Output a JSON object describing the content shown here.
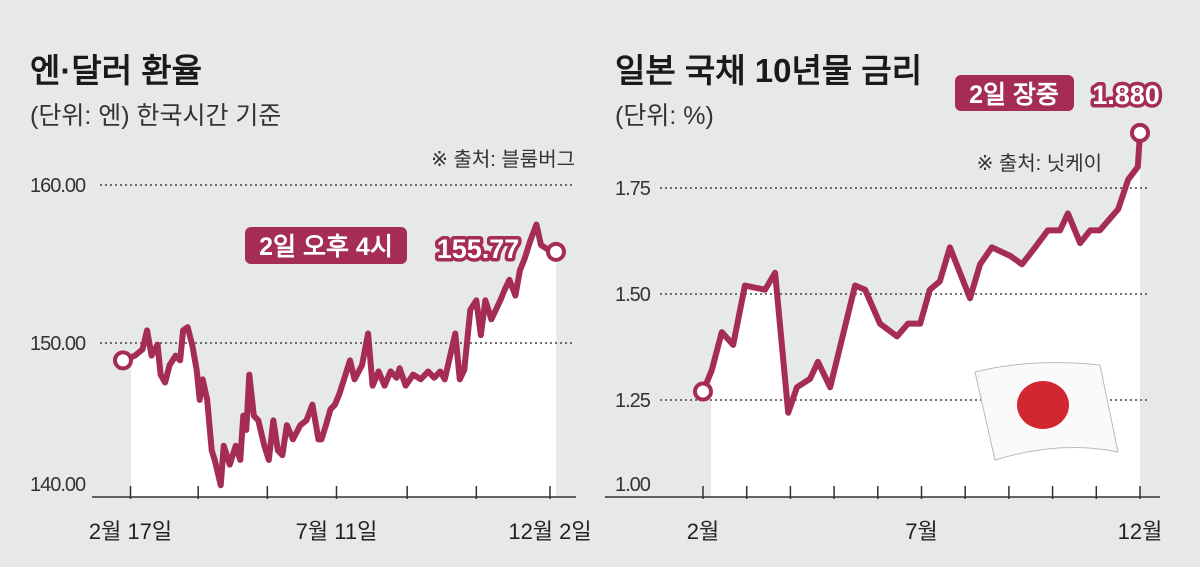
{
  "colors": {
    "line": "#a52d55",
    "background": "#e7e8ea",
    "fill": "#ffffff",
    "flag_red": "#d22630"
  },
  "chart_data": [
    {
      "type": "line",
      "title": "엔·달러 환율",
      "subtitle": "(단위: 엔) 한국시간 기준",
      "source": "※ 출처: 블룸버그",
      "xlabel": "",
      "ylabel": "엔",
      "xlim": [
        0,
        288
      ],
      "ylim": [
        140,
        160
      ],
      "yticks": [
        {
          "value": 160,
          "label": "160.00"
        },
        {
          "value": 150,
          "label": "150.00"
        },
        {
          "value": 140,
          "label": "140.00"
        }
      ],
      "xticks": [
        5,
        50,
        96,
        142,
        189,
        235,
        284
      ],
      "xtick_labels": [
        {
          "day": 5,
          "label": "2월 17일"
        },
        {
          "day": 142,
          "label": "7월 11일"
        },
        {
          "day": 284,
          "label": "12월 2일"
        }
      ],
      "grid": true,
      "annotation": {
        "label": "2일 오후 4시",
        "value": "155.77"
      },
      "x": [
        0,
        8,
        13,
        16,
        19,
        23,
        25,
        28,
        31,
        35,
        38,
        40,
        43,
        46,
        49,
        51,
        53,
        56,
        59,
        61,
        65,
        67,
        71,
        75,
        78,
        80,
        82,
        84,
        87,
        90,
        94,
        97,
        100,
        103,
        106,
        109,
        113,
        118,
        122,
        126,
        130,
        132,
        135,
        138,
        141,
        144,
        148,
        151,
        154,
        159,
        163,
        166,
        170,
        174,
        178,
        182,
        184,
        188,
        193,
        198,
        203,
        207,
        211,
        214,
        221,
        224,
        227,
        231,
        235,
        238,
        241,
        245,
        251,
        254,
        257,
        261,
        264,
        267,
        271,
        275,
        278,
        283,
        288
      ],
      "y": [
        148.9,
        149.2,
        149.6,
        150.8,
        149.2,
        149.9,
        148.0,
        147.5,
        148.6,
        149.2,
        148.9,
        150.8,
        151.0,
        149.9,
        148.3,
        146.4,
        147.7,
        146.4,
        143.2,
        142.6,
        141.0,
        143.5,
        142.3,
        143.5,
        142.6,
        145.4,
        144.5,
        148.0,
        145.4,
        145.1,
        143.5,
        142.6,
        145.1,
        143.2,
        142.9,
        144.8,
        143.9,
        144.8,
        145.1,
        146.1,
        143.9,
        143.9,
        144.8,
        145.8,
        146.1,
        146.8,
        148.0,
        148.9,
        147.7,
        148.6,
        150.6,
        147.3,
        148.2,
        147.3,
        148.2,
        147.8,
        148.4,
        147.3,
        148.0,
        147.7,
        148.2,
        147.8,
        148.2,
        147.7,
        150.6,
        147.7,
        148.3,
        152.1,
        152.7,
        150.5,
        152.7,
        151.5,
        152.7,
        153.4,
        154.0,
        153.0,
        154.6,
        155.3,
        156.5,
        157.5,
        156.2,
        155.9,
        155.77
      ]
    },
    {
      "type": "line",
      "title": "일본 국채 10년물 금리",
      "subtitle": "(단위: %)",
      "source": "※ 출처: 닛케이",
      "xlabel": "",
      "ylabel": "%",
      "xlim": [
        0,
        10
      ],
      "ylim": [
        1.0,
        1.75
      ],
      "yticks": [
        {
          "value": 1.75,
          "label": "1.75"
        },
        {
          "value": 1.5,
          "label": "1.50"
        },
        {
          "value": 1.25,
          "label": "1.25"
        },
        {
          "value": 1.0,
          "label": "1.00"
        }
      ],
      "xticks": [
        0,
        1,
        2,
        3,
        4,
        5,
        6,
        7,
        8,
        9,
        10
      ],
      "xtick_labels": [
        {
          "month": 0,
          "label": "2월"
        },
        {
          "month": 5,
          "label": "7월"
        },
        {
          "month": 10,
          "label": "12월"
        }
      ],
      "grid": true,
      "annotation": {
        "label": "2일 장중",
        "value": "1.880"
      },
      "x": [
        0,
        0.2,
        0.43,
        0.69,
        0.96,
        1.42,
        1.65,
        1.95,
        2.15,
        2.45,
        2.63,
        2.91,
        3.48,
        3.71,
        4.05,
        4.44,
        4.69,
        4.97,
        5.19,
        5.42,
        5.65,
        6.11,
        6.34,
        6.61,
        7.03,
        7.3,
        7.6,
        7.89,
        8.17,
        8.35,
        8.63,
        8.86,
        9.08,
        9.5,
        9.73,
        9.95,
        10
      ],
      "y": [
        1.27,
        1.32,
        1.41,
        1.38,
        1.52,
        1.51,
        1.55,
        1.22,
        1.28,
        1.3,
        1.34,
        1.28,
        1.52,
        1.51,
        1.43,
        1.4,
        1.43,
        1.43,
        1.51,
        1.53,
        1.61,
        1.49,
        1.57,
        1.61,
        1.59,
        1.57,
        1.61,
        1.65,
        1.65,
        1.69,
        1.62,
        1.65,
        1.65,
        1.7,
        1.77,
        1.8,
        1.88
      ]
    }
  ]
}
